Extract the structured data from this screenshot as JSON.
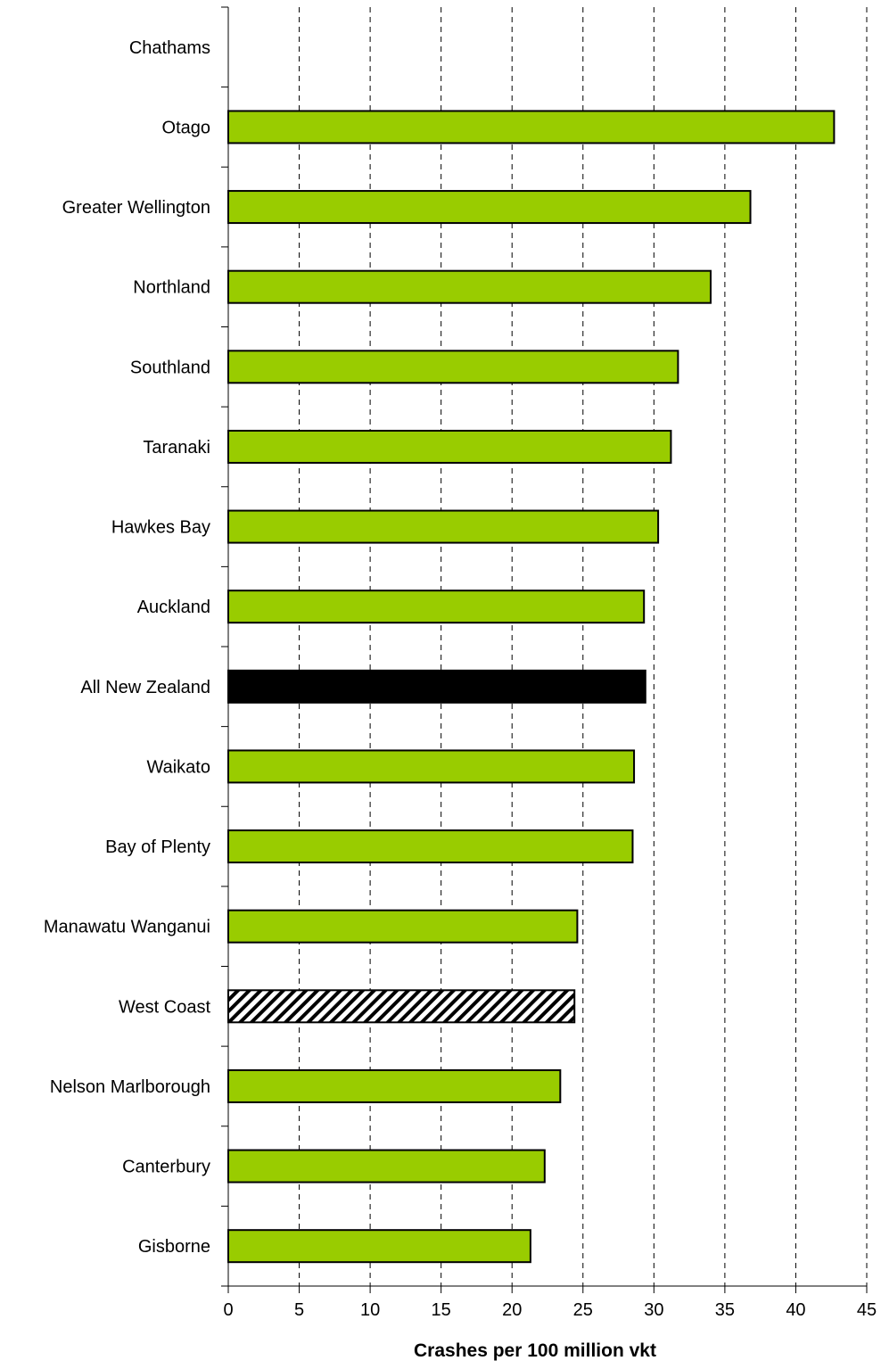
{
  "chart_data": {
    "type": "bar",
    "orientation": "horizontal",
    "categories": [
      "Chathams",
      "Otago",
      "Greater Wellington",
      "Northland",
      "Southland",
      "Taranaki",
      "Hawkes Bay",
      "Auckland",
      "All New Zealand",
      "Waikato",
      "Bay of Plenty",
      "Manawatu Wanganui",
      "West Coast",
      "Nelson Marlborough",
      "Canterbury",
      "Gisborne"
    ],
    "values": [
      0,
      42.7,
      36.8,
      34.0,
      31.7,
      31.2,
      30.3,
      29.3,
      29.4,
      28.6,
      28.5,
      24.6,
      24.4,
      23.4,
      22.3,
      21.3
    ],
    "bar_styles": [
      "green",
      "green",
      "green",
      "green",
      "green",
      "green",
      "green",
      "green",
      "black",
      "green",
      "green",
      "green",
      "hatched",
      "green",
      "green",
      "green"
    ],
    "xlabel": "Crashes per 100 million vkt",
    "ylabel": "",
    "title": "",
    "xlim": [
      0,
      45
    ],
    "xticks": [
      0,
      5,
      10,
      15,
      20,
      25,
      30,
      35,
      40,
      45
    ],
    "grid": "vertical dashed",
    "legend": "none",
    "colors": {
      "bar_fill": "#99cc00",
      "highlight_fill": "#000000",
      "outline": "#000000",
      "grid": "#000000"
    }
  }
}
